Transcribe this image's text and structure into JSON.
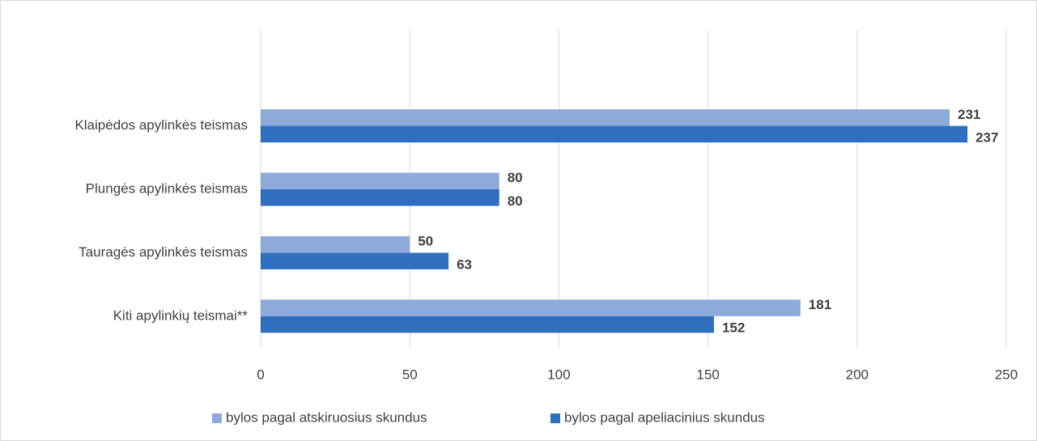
{
  "chart_data": {
    "type": "bar",
    "orientation": "horizontal",
    "categories": [
      "Klaipėdos  apylinkės teismas",
      "Plungės apylinkės teismas",
      "Tauragės apylinkės teismas",
      "Kiti apylinkių teismai**"
    ],
    "series": [
      {
        "name": "bylos pagal atskiruosius skundus",
        "color": "#8eaadb",
        "values": [
          231,
          80,
          50,
          181
        ]
      },
      {
        "name": "bylos pagal apeliacinius skundus",
        "color": "#2e70bf",
        "values": [
          237,
          80,
          63,
          152
        ]
      }
    ],
    "xlim": [
      0,
      250
    ],
    "xticks": [
      0,
      50,
      100,
      150,
      200,
      250
    ],
    "grid": true,
    "legend": "bottom"
  }
}
